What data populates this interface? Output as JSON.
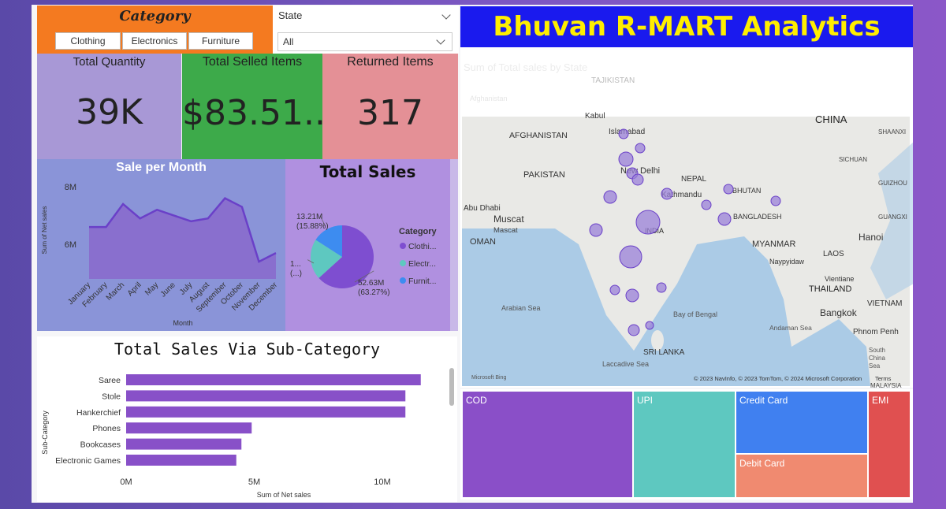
{
  "category_slicer": {
    "title": "Category",
    "options": [
      "Clothing",
      "Electronics",
      "Furniture"
    ]
  },
  "state_slicer": {
    "label": "State",
    "selected": "All"
  },
  "dashboard_title": "Bhuvan R-MART Analytics",
  "kpis": [
    {
      "label": "Total Quantity",
      "value": "39K",
      "color": "#a898d6"
    },
    {
      "label": "Total Selled Items",
      "value": "$83.51...",
      "color": "#3daa4a"
    },
    {
      "label": "Returned Items",
      "value": "317",
      "color": "#e49096"
    }
  ],
  "map": {
    "title": "Sum of Total sales by State",
    "attribution_left": "Microsoft Bing",
    "attribution_right": "© 2023 NavInfo, © 2023 TomTom, © 2024 Microsoft Corporation",
    "terms": "Terms",
    "labels": [
      {
        "text": "TAJIKISTAN"
      },
      {
        "text": "Kabul"
      },
      {
        "text": "Islamabad"
      },
      {
        "text": "AFGHANISTAN"
      },
      {
        "text": "CHINA"
      },
      {
        "text": "SHAANXI"
      },
      {
        "text": "PAKISTAN"
      },
      {
        "text": "New Delhi"
      },
      {
        "text": "NEPAL"
      },
      {
        "text": "Kathmandu"
      },
      {
        "text": "BHUTAN"
      },
      {
        "text": "SICHUAN"
      },
      {
        "text": "Abu Dhabi"
      },
      {
        "text": "Muscat"
      },
      {
        "text": "Mascat"
      },
      {
        "text": "BANGLADESH"
      },
      {
        "text": "INDIA"
      },
      {
        "text": "OMAN"
      },
      {
        "text": "MYANMAR"
      },
      {
        "text": "Hanoi"
      },
      {
        "text": "Naypyidaw"
      },
      {
        "text": "LAOS"
      },
      {
        "text": "Vientiane"
      },
      {
        "text": "THAILAND"
      },
      {
        "text": "Arabian Sea"
      },
      {
        "text": "Bay of Bengal"
      },
      {
        "text": "Bangkok"
      },
      {
        "text": "VIETNAM"
      },
      {
        "text": "Andaman Sea"
      },
      {
        "text": "Phnom Penh"
      },
      {
        "text": "SRI LANKA"
      },
      {
        "text": "Laccadive Sea"
      },
      {
        "text": "South China Sea"
      },
      {
        "text": "GUIZHOU"
      },
      {
        "text": "GUANGXI"
      },
      {
        "text": "MALAYSIA"
      },
      {
        "text": "Afghanistan"
      }
    ]
  },
  "treemap": [
    {
      "label": "COD",
      "color": "#8a4fc8"
    },
    {
      "label": "UPI",
      "color": "#5ec8c0"
    },
    {
      "label": "Credit Card",
      "color": "#4080f0"
    },
    {
      "label": "Debit Card",
      "color": "#f08a70"
    },
    {
      "label": "EMI",
      "color": "#e05050"
    }
  ],
  "colors": {
    "line_area": "#8868cc",
    "line_stroke": "#6a40c8",
    "bar": "#8850c8",
    "pie_clothing": "#7e4ed0",
    "pie_electronics": "#5ec8c0",
    "pie_furniture": "#3d8cf0"
  },
  "chart_data": [
    {
      "type": "area",
      "title": "Sale per Month",
      "xlabel": "Month",
      "ylabel": "Sum of Net sales",
      "x": [
        "January",
        "February",
        "March",
        "April",
        "May",
        "June",
        "July",
        "August",
        "September",
        "October",
        "November",
        "December"
      ],
      "values": [
        6.6,
        6.6,
        7.4,
        6.9,
        7.2,
        7.0,
        6.8,
        6.9,
        7.6,
        7.3,
        5.4,
        5.7
      ],
      "y_ticks": [
        {
          "value": 8,
          "label": "8M"
        },
        {
          "value": 6,
          "label": "6M"
        }
      ],
      "ylim": [
        4.8,
        8.3
      ]
    },
    {
      "type": "pie",
      "title": "Total Sales",
      "legend_title": "Category",
      "legend": [
        {
          "name": "Clothi..."
        },
        {
          "name": "Electr..."
        },
        {
          "name": "Furnit..."
        }
      ],
      "slices": [
        {
          "value": 63.27,
          "label_line1": "52.63M",
          "label_line2": "(63.27%)"
        },
        {
          "value": 20.85,
          "label_line1": "1...",
          "label_line2": "(...)"
        },
        {
          "value": 15.88,
          "label_line1": "13.21M",
          "label_line2": "(15.88%)"
        }
      ]
    },
    {
      "type": "bar",
      "title": "Total Sales Via Sub-Category",
      "xlabel": "Sum of Net sales",
      "ylabel": "Sub-Category",
      "categories": [
        "Saree",
        "Stole",
        "Hankerchief",
        "Phones",
        "Bookcases",
        "Electronic Games"
      ],
      "values": [
        11.5,
        10.9,
        10.9,
        4.9,
        4.5,
        4.3
      ],
      "x_ticks": [
        {
          "value": 0,
          "label": "0M"
        },
        {
          "value": 5,
          "label": "5M"
        },
        {
          "value": 10,
          "label": "10M"
        }
      ],
      "xlim": [
        0,
        12
      ]
    }
  ]
}
